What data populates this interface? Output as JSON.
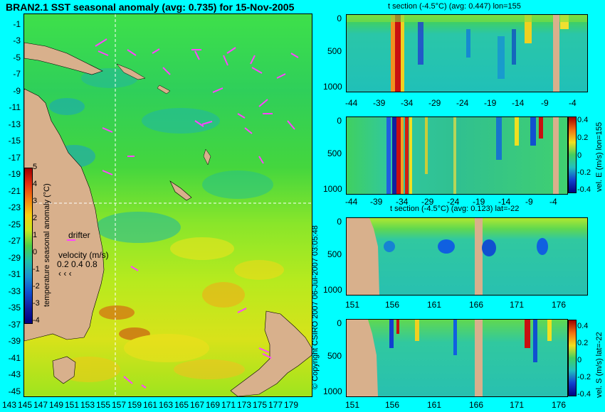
{
  "map": {
    "title": "BRAN2.1 SST seasonal anomaly (avg: 0.735) for 15-Nov-2005",
    "lat_labels": [
      "-1",
      "-3",
      "-5",
      "-7",
      "-9",
      "-11",
      "-13",
      "-15",
      "-17",
      "-19",
      "-21",
      "-23",
      "-25",
      "-27",
      "-29",
      "-31",
      "-33",
      "-35",
      "-37",
      "-39",
      "-41",
      "-43",
      "-45"
    ],
    "lon_labels": [
      "143",
      "145",
      "147",
      "149",
      "151",
      "153",
      "155",
      "157",
      "159",
      "161",
      "163",
      "165",
      "167",
      "169",
      "171",
      "173",
      "175",
      "177",
      "179"
    ],
    "colorbar_label": "temperature seasonal anomaly (°C)",
    "colorbar_ticks": [
      "5",
      "4",
      "3",
      "2",
      "1",
      "0",
      "-1",
      "-2",
      "-3",
      "-4"
    ],
    "drifter_label": "drifter",
    "velocity_label": "velocity (m/s)",
    "velocity_values": "0.2 0.4 0.8",
    "colors": {
      "land": "#d8b08c",
      "arrows": "#ff44ff",
      "background": "#00ffff"
    }
  },
  "credit": "© Copyright CSIRO 2007  06-Jul-2007 03:05:48",
  "panel1": {
    "title": "t section (-4.5°C) (avg: 0.447) lon=155",
    "y_ticks": [
      "0",
      "500",
      "1000"
    ],
    "x_ticks": [
      "-44",
      "-39",
      "-34",
      "-29",
      "-24",
      "-19",
      "-14",
      "-9",
      "-4"
    ]
  },
  "panel2": {
    "y_ticks": [
      "0",
      "500",
      "1000"
    ],
    "x_ticks": [
      "-44",
      "-39",
      "-34",
      "-29",
      "-24",
      "-19",
      "-14",
      "-9",
      "-4"
    ],
    "colorbar_label": "vel. E (m/s) lon=155",
    "colorbar_ticks": [
      "0.4",
      "0.2",
      "0",
      "-0.2",
      "-0.4"
    ]
  },
  "panel3": {
    "title": "t section (-4.5°C) (avg: 0.123) lat=-22",
    "y_ticks": [
      "0",
      "500",
      "1000"
    ],
    "x_ticks": [
      "151",
      "156",
      "161",
      "166",
      "171",
      "176"
    ]
  },
  "panel4": {
    "y_ticks": [
      "0",
      "500",
      "1000"
    ],
    "x_ticks": [
      "151",
      "156",
      "161",
      "166",
      "171",
      "176"
    ],
    "colorbar_label": "vel. S (m/s) lat=-22",
    "colorbar_ticks": [
      "0.4",
      "0.2",
      "0",
      "-0.2",
      "-0.4"
    ]
  }
}
